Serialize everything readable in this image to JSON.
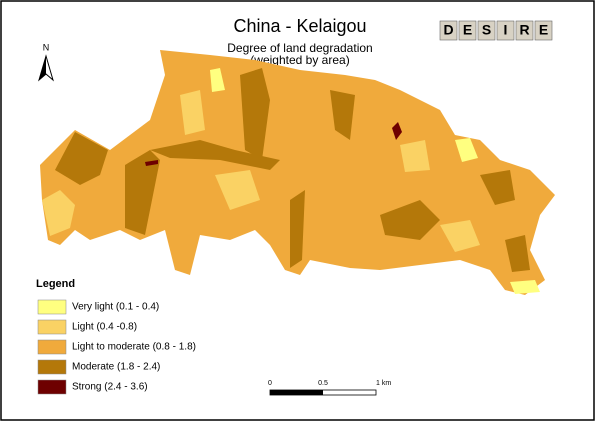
{
  "header": {
    "title": "China - Kelaigou",
    "subtitle": "Degree of land degradation",
    "note": "(weighted by area)",
    "logo": [
      "D",
      "E",
      "S",
      "I",
      "R",
      "E"
    ]
  },
  "north": "N",
  "legend": {
    "title": "Legend",
    "items": [
      {
        "label": "Very light (0.1 - 0.4)",
        "color": "#ffff80"
      },
      {
        "label": "Light (0.4 -0.8)",
        "color": "#fad264"
      },
      {
        "label": "Light to moderate (0.8 - 1.8)",
        "color": "#f0aa3c"
      },
      {
        "label": "Moderate (1.8 - 2.4)",
        "color": "#b4780a"
      },
      {
        "label": "Strong (2.4 - 3.6)",
        "color": "#6e0000"
      }
    ]
  },
  "scale_bar": {
    "ticks": [
      "0",
      "0.5",
      "1 km"
    ]
  }
}
